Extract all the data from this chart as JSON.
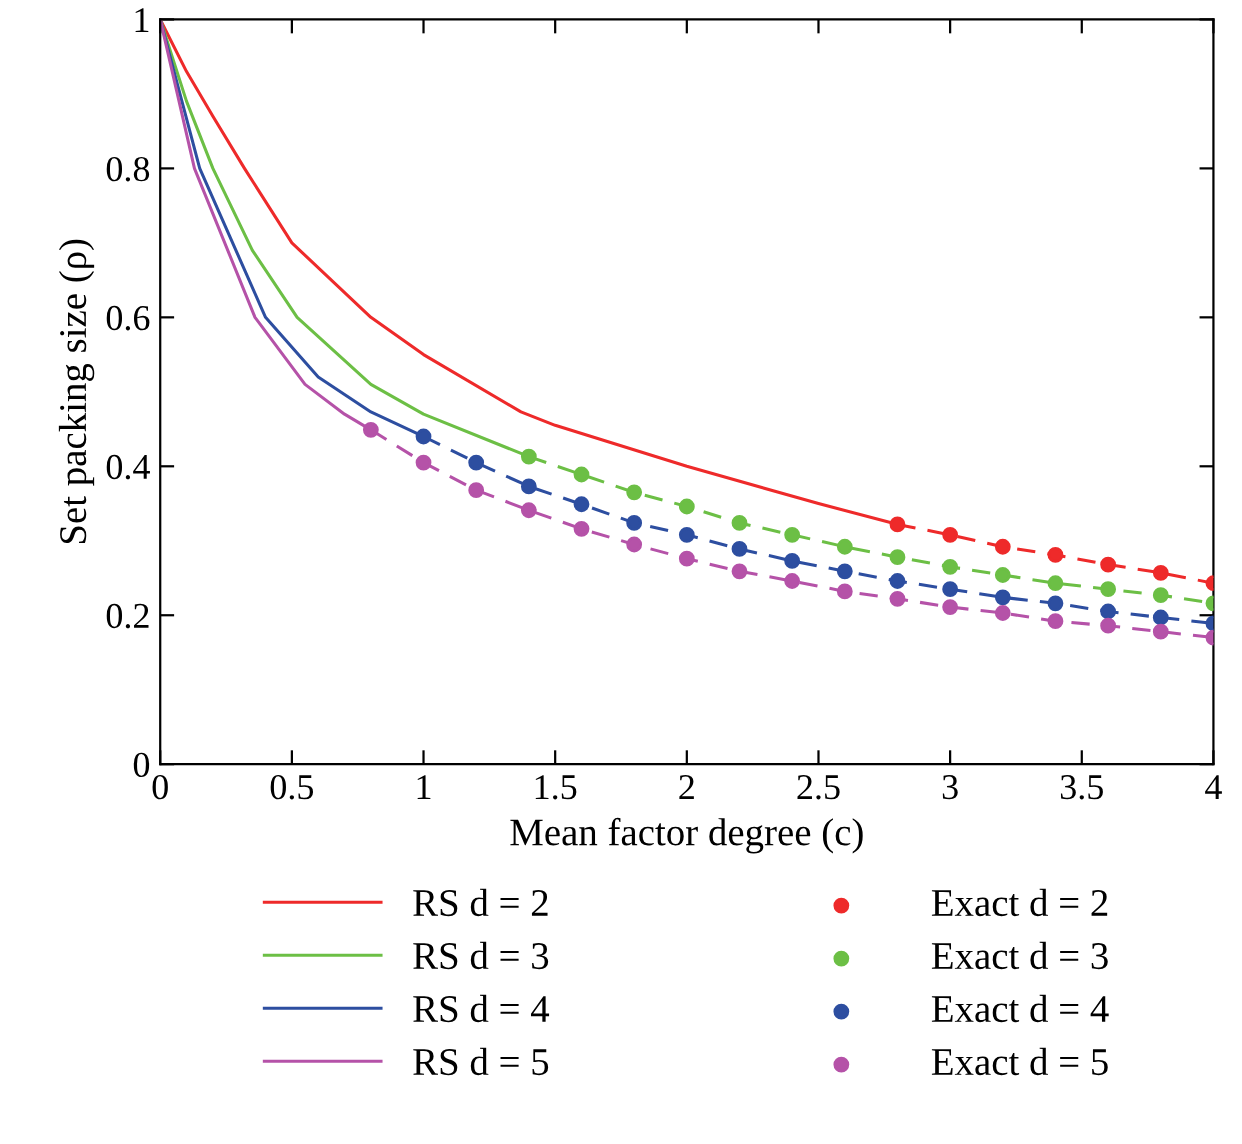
{
  "chart_data": {
    "type": "line",
    "xlabel": "Mean factor degree (c)",
    "ylabel": "Set packing size (ρ)",
    "xlim": [
      0,
      4
    ],
    "ylim": [
      0,
      1
    ],
    "xticks": [
      0,
      0.5,
      1,
      1.5,
      2,
      2.5,
      3,
      3.5,
      4
    ],
    "yticks": [
      0,
      0.2,
      0.4,
      0.6,
      0.8,
      1
    ],
    "grid": false,
    "legend": "bottom",
    "marker": "none",
    "series": [
      {
        "name": "RS d = 2",
        "color": "#ee2a2a",
        "line_style": "solid",
        "x": [
          0,
          0.1,
          0.2,
          0.32,
          0.5,
          0.8,
          1.0,
          1.37,
          1.5,
          2.0,
          2.5,
          2.8
        ],
        "values": [
          1,
          0.93,
          0.87,
          0.8,
          0.7,
          0.6,
          0.55,
          0.473,
          0.455,
          0.4,
          0.35,
          0.322
        ]
      },
      {
        "name": "RS d = 3",
        "color": "#6cbf45",
        "line_style": "solid",
        "x": [
          0,
          0.1,
          0.2,
          0.35,
          0.52,
          0.8,
          1.0,
          1.4
        ],
        "values": [
          1,
          0.89,
          0.8,
          0.69,
          0.6,
          0.51,
          0.47,
          0.413
        ]
      },
      {
        "name": "RS d = 4",
        "color": "#2d4ea0",
        "line_style": "solid",
        "x": [
          0,
          0.15,
          0.4,
          0.6,
          0.8,
          1.0
        ],
        "values": [
          1,
          0.8,
          0.6,
          0.52,
          0.473,
          0.44
        ]
      },
      {
        "name": "RS d = 5",
        "color": "#b552a8",
        "line_style": "solid",
        "x": [
          0,
          0.13,
          0.36,
          0.55,
          0.7,
          0.8
        ],
        "values": [
          1,
          0.8,
          0.6,
          0.51,
          0.47,
          0.449
        ]
      },
      {
        "color": "#ee2a2a",
        "line_style": "dashed",
        "x": [
          2.8,
          3.0,
          3.2,
          3.4,
          3.6,
          3.8,
          4.0
        ],
        "values": [
          0.322,
          0.308,
          0.292,
          0.281,
          0.268,
          0.257,
          0.243
        ]
      },
      {
        "color": "#6cbf45",
        "line_style": "dashed",
        "x": [
          1.4,
          1.6,
          1.8,
          2.0,
          2.2,
          2.4,
          2.6,
          2.8,
          3.0,
          3.2,
          3.4,
          3.6,
          3.8,
          4.0
        ],
        "values": [
          0.413,
          0.389,
          0.365,
          0.346,
          0.324,
          0.308,
          0.292,
          0.278,
          0.265,
          0.254,
          0.243,
          0.235,
          0.227,
          0.216
        ]
      },
      {
        "color": "#2d4ea0",
        "line_style": "dashed",
        "x": [
          1.0,
          1.2,
          1.4,
          1.6,
          1.8,
          2.0,
          2.2,
          2.4,
          2.6,
          2.8,
          3.0,
          3.2,
          3.4,
          3.6,
          3.8,
          4.0
        ],
        "values": [
          0.44,
          0.405,
          0.373,
          0.349,
          0.324,
          0.308,
          0.289,
          0.273,
          0.259,
          0.246,
          0.235,
          0.224,
          0.216,
          0.205,
          0.197,
          0.189
        ]
      },
      {
        "color": "#b552a8",
        "line_style": "dashed",
        "x": [
          0.8,
          1.0,
          1.2,
          1.4,
          1.6,
          1.8,
          2.0,
          2.2,
          2.4,
          2.6,
          2.8,
          3.0,
          3.2,
          3.4,
          3.6,
          3.8,
          4.0
        ],
        "values": [
          0.449,
          0.405,
          0.368,
          0.341,
          0.316,
          0.295,
          0.276,
          0.259,
          0.246,
          0.232,
          0.222,
          0.211,
          0.203,
          0.192,
          0.186,
          0.178,
          0.17
        ]
      },
      {
        "name": "Exact d = 2",
        "type": "scatter",
        "marker": "circle",
        "color": "#ee2a2a",
        "x": [
          2.8,
          3.0,
          3.2,
          3.4,
          3.6,
          3.8,
          4.0
        ],
        "values": [
          0.322,
          0.308,
          0.292,
          0.281,
          0.268,
          0.257,
          0.243
        ]
      },
      {
        "name": "Exact d = 3",
        "type": "scatter",
        "marker": "circle",
        "color": "#6cbf45",
        "x": [
          1.4,
          1.6,
          1.8,
          2.0,
          2.2,
          2.4,
          2.6,
          2.8,
          3.0,
          3.2,
          3.4,
          3.6,
          3.8,
          4.0
        ],
        "values": [
          0.413,
          0.389,
          0.365,
          0.346,
          0.324,
          0.308,
          0.292,
          0.278,
          0.265,
          0.254,
          0.243,
          0.235,
          0.227,
          0.216
        ]
      },
      {
        "name": "Exact d = 4",
        "type": "scatter",
        "marker": "circle",
        "color": "#2d4ea0",
        "x": [
          1.0,
          1.2,
          1.4,
          1.6,
          1.8,
          2.0,
          2.2,
          2.4,
          2.6,
          2.8,
          3.0,
          3.2,
          3.4,
          3.6,
          3.8,
          4.0
        ],
        "values": [
          0.44,
          0.405,
          0.373,
          0.349,
          0.324,
          0.308,
          0.289,
          0.273,
          0.259,
          0.246,
          0.235,
          0.224,
          0.216,
          0.205,
          0.197,
          0.189
        ]
      },
      {
        "name": "Exact d = 5",
        "type": "scatter",
        "marker": "circle",
        "color": "#b552a8",
        "x": [
          0.8,
          1.0,
          1.2,
          1.4,
          1.6,
          1.8,
          2.0,
          2.2,
          2.4,
          2.6,
          2.8,
          3.0,
          3.2,
          3.4,
          3.6,
          3.8,
          4.0
        ],
        "values": [
          0.449,
          0.405,
          0.368,
          0.341,
          0.316,
          0.295,
          0.276,
          0.259,
          0.246,
          0.232,
          0.222,
          0.211,
          0.203,
          0.192,
          0.186,
          0.178,
          0.17
        ]
      }
    ]
  }
}
